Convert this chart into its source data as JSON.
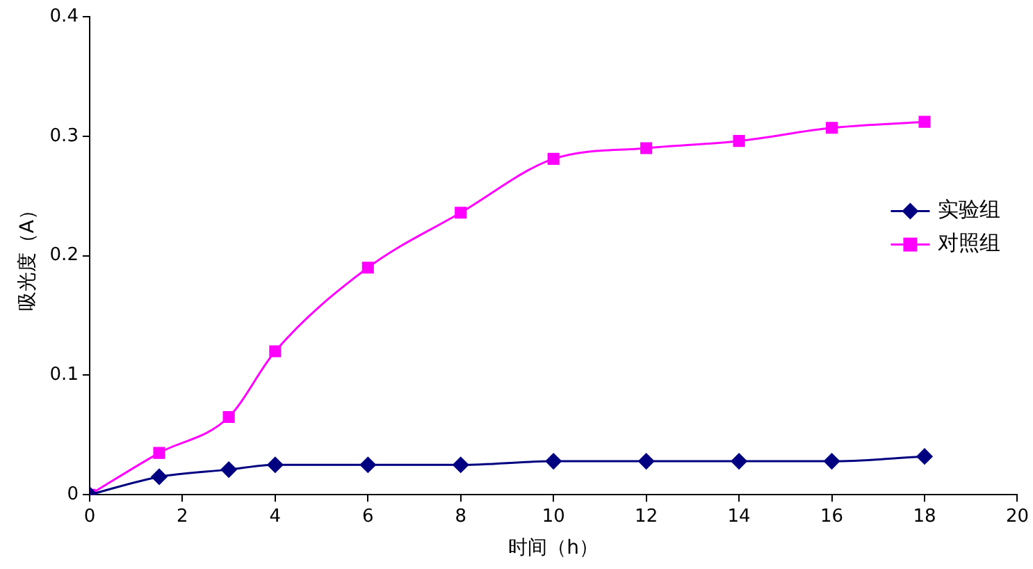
{
  "chart_data": {
    "type": "line",
    "xlabel": "时间（h）",
    "ylabel": "吸光度（A）",
    "xlim": [
      0,
      20
    ],
    "xticks": [
      0,
      2,
      4,
      6,
      8,
      10,
      12,
      14,
      16,
      18,
      20
    ],
    "ylim": [
      0,
      0.4
    ],
    "yticks": [
      0,
      0.1,
      0.2,
      0.3,
      0.4
    ],
    "grid": false,
    "legend": "right",
    "series": [
      {
        "name": "实验组",
        "color": "#000080",
        "marker": "diamond",
        "x": [
          0,
          1.5,
          3,
          4,
          6,
          8,
          10,
          12,
          14,
          16,
          18
        ],
        "values": [
          0,
          0.015,
          0.021,
          0.025,
          0.025,
          0.025,
          0.028,
          0.028,
          0.028,
          0.028,
          0.032
        ]
      },
      {
        "name": "对照组",
        "color": "#ff00ff",
        "marker": "square",
        "x": [
          0,
          1.5,
          3,
          4,
          6,
          8,
          10,
          12,
          14,
          16,
          18
        ],
        "values": [
          0,
          0.035,
          0.065,
          0.12,
          0.19,
          0.236,
          0.281,
          0.29,
          0.296,
          0.307,
          0.312
        ]
      }
    ]
  }
}
